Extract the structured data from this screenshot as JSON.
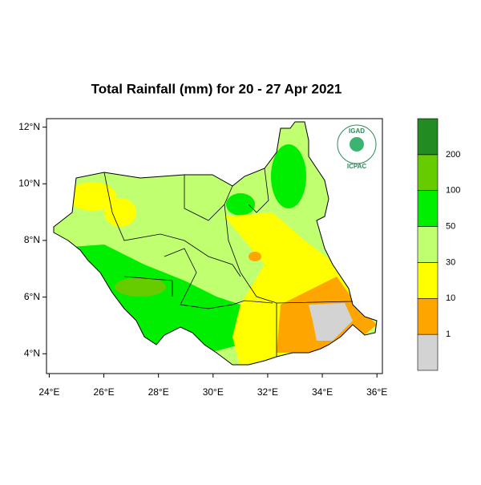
{
  "title": "Total Rainfall (mm) for 20 - 27 Apr 2021",
  "map": {
    "xlim": [
      23.9,
      36.2
    ],
    "ylim": [
      3.3,
      12.3
    ],
    "xticks": [
      {
        "value": 24,
        "label": "24°E"
      },
      {
        "value": 26,
        "label": "26°E"
      },
      {
        "value": 28,
        "label": "28°E"
      },
      {
        "value": 30,
        "label": "30°E"
      },
      {
        "value": 32,
        "label": "32°E"
      },
      {
        "value": 34,
        "label": "34°E"
      },
      {
        "value": 36,
        "label": "36°E"
      }
    ],
    "yticks": [
      {
        "value": 4,
        "label": "4°N"
      },
      {
        "value": 6,
        "label": "6°N"
      },
      {
        "value": 8,
        "label": "8°N"
      },
      {
        "value": 10,
        "label": "10°N"
      },
      {
        "value": 12,
        "label": "12°N"
      }
    ]
  },
  "colorbar": {
    "levels": [
      1,
      10,
      30,
      50,
      100,
      200
    ],
    "colors": [
      "#d3d3d3",
      "#ffa500",
      "#ffff00",
      "#c0ff70",
      "#00ee00",
      "#66cc00",
      "#228b22"
    ]
  },
  "logo": {
    "top": "IGAD",
    "bottom": "ICPAC"
  }
}
